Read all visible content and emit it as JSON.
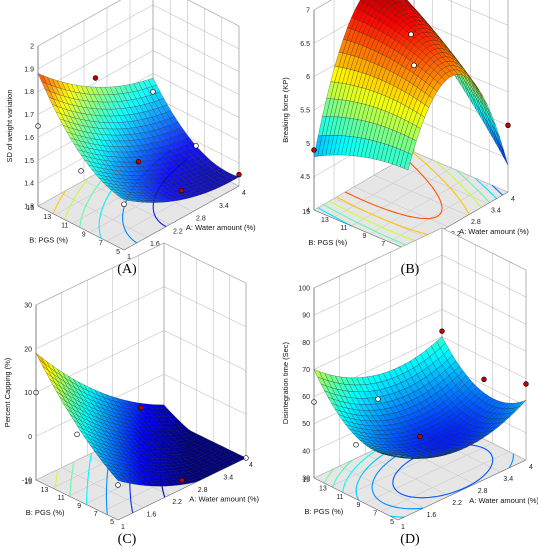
{
  "chart_data": [
    {
      "type": "surface3d",
      "panel_label": "(A)",
      "zlabel": "SD of weight variation",
      "xlabel": "A: Water amount  (%)",
      "ylabel": "B: PGS (%)",
      "x_ticks": [
        "1",
        "1.6",
        "2.2",
        "2.8",
        "3.4",
        "4"
      ],
      "y_ticks": [
        "5",
        "7",
        "9",
        "11",
        "13",
        "15"
      ],
      "z_ticks": [
        "1.3",
        "1.4",
        "1.5",
        "1.6",
        "1.7",
        "1.8",
        "1.9",
        "2"
      ],
      "xlim": [
        1,
        4
      ],
      "ylim": [
        5,
        15
      ],
      "zlim": [
        1.3,
        2
      ],
      "model": {
        "b0": 1.45,
        "bx": -0.12,
        "by": 0.15,
        "bxx": 0.05,
        "byy": 0.08,
        "bxy": -0.03
      },
      "design_points": [
        {
          "x": 1,
          "y": 15,
          "z": 1.65
        },
        {
          "x": 2.5,
          "y": 15,
          "z": 1.72
        },
        {
          "x": 4,
          "y": 15,
          "z": 1.52
        },
        {
          "x": 1,
          "y": 10,
          "z": 1.55
        },
        {
          "x": 2.5,
          "y": 10,
          "z": 1.45
        },
        {
          "x": 4,
          "y": 10,
          "z": 1.38
        },
        {
          "x": 1,
          "y": 5,
          "z": 1.5
        },
        {
          "x": 2.5,
          "y": 5,
          "z": 1.42
        },
        {
          "x": 4,
          "y": 5,
          "z": 1.35
        }
      ]
    },
    {
      "type": "surface3d",
      "panel_label": "(B)",
      "zlabel": "Breaking force  (KP)",
      "xlabel": "A: Water amount  (%)",
      "ylabel": "B: PGS (%)",
      "x_ticks": [
        "1",
        "1.6",
        "2.2",
        "2.8",
        "3.4",
        "4"
      ],
      "y_ticks": [
        "5",
        "7",
        "9",
        "11",
        "13",
        "15"
      ],
      "z_ticks": [
        "4",
        "4.5",
        "5",
        "5.5",
        "6",
        "6.5",
        "7"
      ],
      "xlim": [
        1,
        4
      ],
      "ylim": [
        5,
        15
      ],
      "zlim": [
        4,
        7
      ],
      "model": {
        "b0": 6.6,
        "bx": 0.1,
        "by": 0.3,
        "bxx": -1.4,
        "byy": -0.1,
        "bxy": 0.5
      },
      "design_points": [
        {
          "x": 2.5,
          "y": 15,
          "z": 7.0
        },
        {
          "x": 4,
          "y": 15,
          "z": 5.3
        },
        {
          "x": 1,
          "y": 15,
          "z": 4.9
        },
        {
          "x": 2.5,
          "y": 10,
          "z": 6.5
        },
        {
          "x": 1,
          "y": 5,
          "z": 3.9
        },
        {
          "x": 4,
          "y": 5,
          "z": 5.0
        }
      ]
    },
    {
      "type": "surface3d",
      "panel_label": "(C)",
      "zlabel": "Percent Capping  (%)",
      "xlabel": "A: Water amount  (%)",
      "ylabel": "B: PGS (%)",
      "x_ticks": [
        "1",
        "1.6",
        "2.2",
        "2.8",
        "3.4",
        "4"
      ],
      "y_ticks": [
        "5",
        "7",
        "9",
        "11",
        "13",
        "15"
      ],
      "z_ticks": [
        "-10",
        "0",
        "10",
        "20",
        "30"
      ],
      "xlim": [
        1,
        4
      ],
      "ylim": [
        5,
        15
      ],
      "zlim": [
        -10,
        30
      ],
      "model": {
        "b0": -5,
        "bx": -9,
        "by": 6,
        "bxx": 3,
        "byy": 2,
        "bxy": -4
      },
      "design_points": [
        {
          "x": 1,
          "y": 15,
          "z": 10
        },
        {
          "x": 1,
          "y": 10,
          "z": 5
        },
        {
          "x": 2.5,
          "y": 10,
          "z": 4
        },
        {
          "x": 1,
          "y": 5,
          "z": -2
        },
        {
          "x": 4,
          "y": 5,
          "z": -16
        },
        {
          "x": 2.5,
          "y": 5,
          "z": -8
        }
      ]
    },
    {
      "type": "surface3d",
      "panel_label": "(D)",
      "zlabel": "Disintegration time  (Sec)",
      "xlabel": "A: Water amount  (%)",
      "ylabel": "B: PGS (%)",
      "x_ticks": [
        "1",
        "1.6",
        "2.2",
        "2.8",
        "3.4",
        "4"
      ],
      "y_ticks": [
        "5",
        "7",
        "9",
        "11",
        "13",
        "15"
      ],
      "z_ticks": [
        "30",
        "40",
        "50",
        "60",
        "70",
        "80",
        "90",
        "100"
      ],
      "xlim": [
        1,
        4
      ],
      "ylim": [
        5,
        15
      ],
      "zlim": [
        30,
        100
      ],
      "model": {
        "b0": 42,
        "bx": -3,
        "by": 6,
        "bxx": 8,
        "byy": 9,
        "bxy": -2
      },
      "design_points": [
        {
          "x": 1,
          "y": 15,
          "z": 58
        },
        {
          "x": 4,
          "y": 15,
          "z": 62
        },
        {
          "x": 2.5,
          "y": 15,
          "z": 48
        },
        {
          "x": 1,
          "y": 10,
          "z": 50
        },
        {
          "x": 2.5,
          "y": 10,
          "z": 42
        },
        {
          "x": 4,
          "y": 10,
          "z": 52
        },
        {
          "x": 4,
          "y": 5,
          "z": 58
        }
      ]
    }
  ]
}
